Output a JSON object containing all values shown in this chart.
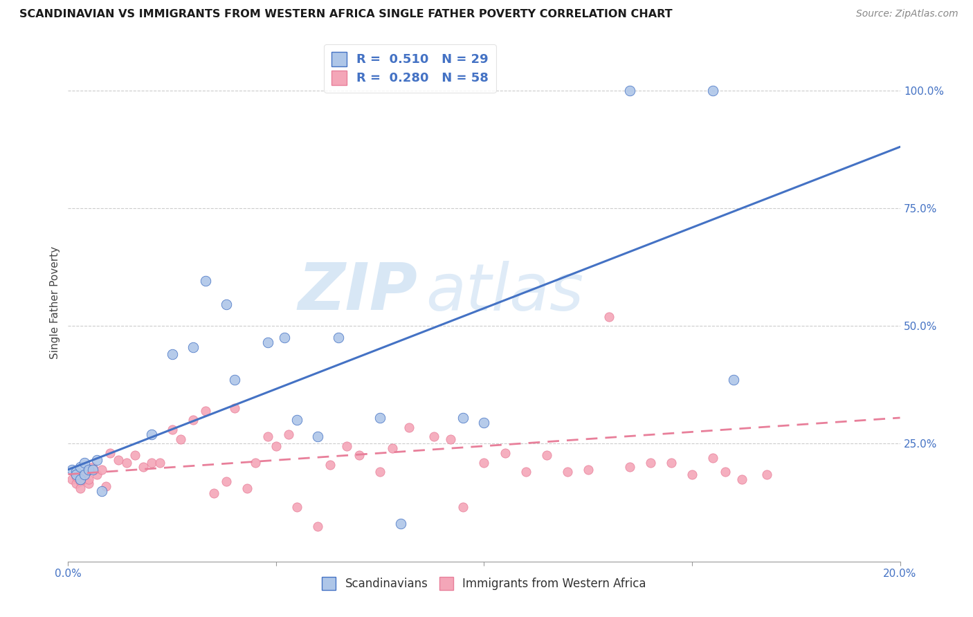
{
  "title": "SCANDINAVIAN VS IMMIGRANTS FROM WESTERN AFRICA SINGLE FATHER POVERTY CORRELATION CHART",
  "source": "Source: ZipAtlas.com",
  "ylabel": "Single Father Poverty",
  "right_yticks": [
    "100.0%",
    "75.0%",
    "50.0%",
    "25.0%"
  ],
  "right_ytick_vals": [
    1.0,
    0.75,
    0.5,
    0.25
  ],
  "legend1_label": "R =  0.510   N = 29",
  "legend2_label": "R =  0.280   N = 58",
  "legend_bottom_label1": "Scandinavians",
  "legend_bottom_label2": "Immigrants from Western Africa",
  "blue_color": "#AEC6E8",
  "pink_color": "#F4A6B8",
  "blue_line_color": "#4472C4",
  "pink_line_color": "#E87F9A",
  "watermark_zip": "ZIP",
  "watermark_atlas": "atlas",
  "blue_scatter_x": [
    0.001,
    0.002,
    0.002,
    0.003,
    0.003,
    0.004,
    0.004,
    0.005,
    0.006,
    0.007,
    0.008,
    0.02,
    0.025,
    0.03,
    0.033,
    0.038,
    0.04,
    0.048,
    0.052,
    0.055,
    0.06,
    0.065,
    0.075,
    0.08,
    0.095,
    0.1,
    0.135,
    0.155,
    0.16
  ],
  "blue_scatter_y": [
    0.195,
    0.19,
    0.185,
    0.2,
    0.175,
    0.21,
    0.185,
    0.195,
    0.195,
    0.215,
    0.15,
    0.27,
    0.44,
    0.455,
    0.595,
    0.545,
    0.385,
    0.465,
    0.475,
    0.3,
    0.265,
    0.475,
    0.305,
    0.08,
    0.305,
    0.295,
    1.0,
    1.0,
    0.385
  ],
  "pink_scatter_x": [
    0.001,
    0.002,
    0.002,
    0.003,
    0.003,
    0.004,
    0.004,
    0.005,
    0.005,
    0.006,
    0.007,
    0.008,
    0.009,
    0.01,
    0.012,
    0.014,
    0.016,
    0.018,
    0.02,
    0.022,
    0.025,
    0.027,
    0.03,
    0.033,
    0.035,
    0.038,
    0.04,
    0.043,
    0.045,
    0.048,
    0.05,
    0.053,
    0.055,
    0.06,
    0.063,
    0.067,
    0.07,
    0.075,
    0.078,
    0.082,
    0.088,
    0.092,
    0.095,
    0.1,
    0.105,
    0.11,
    0.115,
    0.12,
    0.125,
    0.13,
    0.135,
    0.14,
    0.145,
    0.15,
    0.155,
    0.158,
    0.162,
    0.168
  ],
  "pink_scatter_y": [
    0.175,
    0.165,
    0.18,
    0.17,
    0.155,
    0.175,
    0.185,
    0.165,
    0.175,
    0.2,
    0.185,
    0.195,
    0.16,
    0.23,
    0.215,
    0.21,
    0.225,
    0.2,
    0.21,
    0.21,
    0.28,
    0.26,
    0.3,
    0.32,
    0.145,
    0.17,
    0.325,
    0.155,
    0.21,
    0.265,
    0.245,
    0.27,
    0.115,
    0.075,
    0.205,
    0.245,
    0.225,
    0.19,
    0.24,
    0.285,
    0.265,
    0.26,
    0.115,
    0.21,
    0.23,
    0.19,
    0.225,
    0.19,
    0.195,
    0.52,
    0.2,
    0.21,
    0.21,
    0.185,
    0.22,
    0.19,
    0.175,
    0.185
  ],
  "xlim": [
    0,
    0.2
  ],
  "ylim": [
    0,
    1.1
  ],
  "blue_line_x0": 0.0,
  "blue_line_y0": 0.195,
  "blue_line_x1": 0.2,
  "blue_line_y1": 0.88,
  "pink_line_x0": 0.0,
  "pink_line_y0": 0.185,
  "pink_line_x1": 0.2,
  "pink_line_y1": 0.305
}
